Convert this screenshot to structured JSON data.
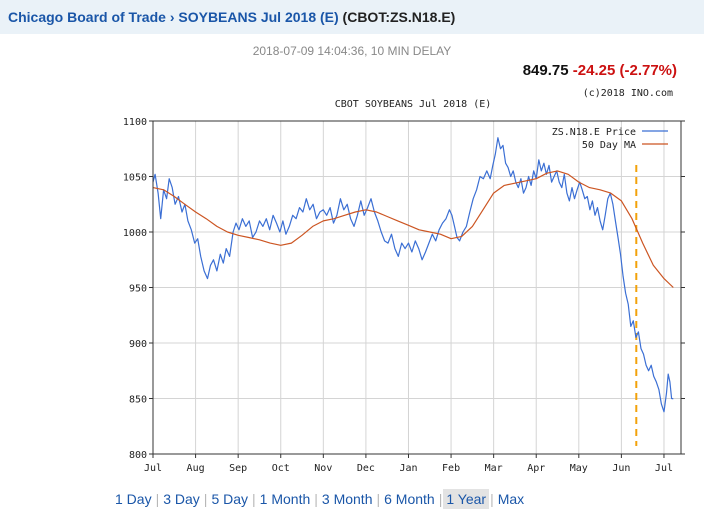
{
  "header": {
    "exchange": "Chicago Board of Trade",
    "separator": "›",
    "contract": "SOYBEANS Jul 2018 (E)",
    "symbol": "(CBOT:ZS.N18.E)"
  },
  "timestamp": "2018-07-09 14:04:36, 10 MIN DELAY",
  "quote": {
    "last": "849.75",
    "change": "-24.25 (-2.77%)"
  },
  "colors": {
    "price": "#3b6fd4",
    "ma": "#cc5522",
    "marker": "#f2a20a",
    "link": "#1a56a8",
    "change": "#cc1111"
  },
  "ranges": [
    "1 Day",
    "3 Day",
    "5 Day",
    "1 Month",
    "3 Month",
    "6 Month",
    "1 Year",
    "Max"
  ],
  "active_range": "1 Year",
  "chart_data": {
    "type": "line",
    "title": "CBOT SOYBEANS Jul 2018 (E)",
    "copyright": "(c)2018 INO.com",
    "ylim": [
      800,
      1100
    ],
    "yticks": [
      800,
      850,
      900,
      950,
      1000,
      1050,
      1100
    ],
    "xlim": [
      0,
      12.4
    ],
    "xticks": [
      {
        "label": "Jul",
        "x": 0
      },
      {
        "label": "Aug",
        "x": 1
      },
      {
        "label": "Sep",
        "x": 2
      },
      {
        "label": "Oct",
        "x": 3
      },
      {
        "label": "Nov",
        "x": 4
      },
      {
        "label": "Dec",
        "x": 5
      },
      {
        "label": "Jan",
        "x": 6
      },
      {
        "label": "Feb",
        "x": 7
      },
      {
        "label": "Mar",
        "x": 8
      },
      {
        "label": "Apr",
        "x": 9
      },
      {
        "label": "May",
        "x": 10
      },
      {
        "label": "Jun",
        "x": 11
      },
      {
        "label": "Jul",
        "x": 12
      }
    ],
    "grid": true,
    "legend_position": "top-right",
    "marker_x": 11.35,
    "series": [
      {
        "name": "ZS.N18.E Price",
        "points": [
          [
            0.0,
            1045
          ],
          [
            0.05,
            1052
          ],
          [
            0.12,
            1035
          ],
          [
            0.18,
            1012
          ],
          [
            0.25,
            1038
          ],
          [
            0.32,
            1030
          ],
          [
            0.38,
            1048
          ],
          [
            0.45,
            1040
          ],
          [
            0.52,
            1025
          ],
          [
            0.6,
            1032
          ],
          [
            0.68,
            1018
          ],
          [
            0.75,
            1025
          ],
          [
            0.82,
            1010
          ],
          [
            0.9,
            1002
          ],
          [
            0.98,
            990
          ],
          [
            1.05,
            994
          ],
          [
            1.12,
            978
          ],
          [
            1.2,
            965
          ],
          [
            1.28,
            958
          ],
          [
            1.35,
            970
          ],
          [
            1.42,
            975
          ],
          [
            1.5,
            965
          ],
          [
            1.58,
            980
          ],
          [
            1.65,
            972
          ],
          [
            1.72,
            985
          ],
          [
            1.8,
            978
          ],
          [
            1.88,
            1000
          ],
          [
            1.95,
            1008
          ],
          [
            2.02,
            1002
          ],
          [
            2.1,
            1012
          ],
          [
            2.18,
            1005
          ],
          [
            2.26,
            1010
          ],
          [
            2.34,
            995
          ],
          [
            2.42,
            1000
          ],
          [
            2.5,
            1010
          ],
          [
            2.58,
            1005
          ],
          [
            2.66,
            1012
          ],
          [
            2.74,
            1002
          ],
          [
            2.82,
            1015
          ],
          [
            2.9,
            1008
          ],
          [
            2.98,
            1000
          ],
          [
            3.05,
            1010
          ],
          [
            3.12,
            998
          ],
          [
            3.2,
            1005
          ],
          [
            3.28,
            1015
          ],
          [
            3.36,
            1012
          ],
          [
            3.44,
            1022
          ],
          [
            3.52,
            1018
          ],
          [
            3.6,
            1030
          ],
          [
            3.68,
            1020
          ],
          [
            3.76,
            1025
          ],
          [
            3.84,
            1012
          ],
          [
            3.92,
            1018
          ],
          [
            4.0,
            1020
          ],
          [
            4.08,
            1015
          ],
          [
            4.16,
            1022
          ],
          [
            4.24,
            1008
          ],
          [
            4.32,
            1015
          ],
          [
            4.4,
            1030
          ],
          [
            4.48,
            1020
          ],
          [
            4.56,
            1025
          ],
          [
            4.64,
            1012
          ],
          [
            4.72,
            1005
          ],
          [
            4.8,
            1015
          ],
          [
            4.88,
            1028
          ],
          [
            4.96,
            1015
          ],
          [
            5.04,
            1022
          ],
          [
            5.12,
            1030
          ],
          [
            5.2,
            1018
          ],
          [
            5.28,
            1010
          ],
          [
            5.36,
            1000
          ],
          [
            5.44,
            992
          ],
          [
            5.52,
            990
          ],
          [
            5.6,
            998
          ],
          [
            5.68,
            985
          ],
          [
            5.76,
            978
          ],
          [
            5.84,
            990
          ],
          [
            5.92,
            985
          ],
          [
            6.0,
            990
          ],
          [
            6.08,
            982
          ],
          [
            6.16,
            992
          ],
          [
            6.24,
            985
          ],
          [
            6.32,
            975
          ],
          [
            6.4,
            982
          ],
          [
            6.48,
            990
          ],
          [
            6.56,
            998
          ],
          [
            6.64,
            992
          ],
          [
            6.72,
            1002
          ],
          [
            6.8,
            1008
          ],
          [
            6.88,
            1012
          ],
          [
            6.96,
            1020
          ],
          [
            7.02,
            1015
          ],
          [
            7.08,
            1005
          ],
          [
            7.14,
            995
          ],
          [
            7.2,
            992
          ],
          [
            7.28,
            1000
          ],
          [
            7.36,
            1005
          ],
          [
            7.44,
            1018
          ],
          [
            7.52,
            1030
          ],
          [
            7.6,
            1038
          ],
          [
            7.68,
            1050
          ],
          [
            7.76,
            1048
          ],
          [
            7.84,
            1055
          ],
          [
            7.92,
            1048
          ],
          [
            7.98,
            1060
          ],
          [
            8.04,
            1070
          ],
          [
            8.1,
            1085
          ],
          [
            8.16,
            1075
          ],
          [
            8.22,
            1078
          ],
          [
            8.28,
            1062
          ],
          [
            8.34,
            1058
          ],
          [
            8.4,
            1050
          ],
          [
            8.46,
            1055
          ],
          [
            8.52,
            1045
          ],
          [
            8.58,
            1040
          ],
          [
            8.64,
            1048
          ],
          [
            8.7,
            1035
          ],
          [
            8.76,
            1040
          ],
          [
            8.82,
            1050
          ],
          [
            8.88,
            1042
          ],
          [
            8.94,
            1055
          ],
          [
            9.0,
            1048
          ],
          [
            9.06,
            1065
          ],
          [
            9.12,
            1055
          ],
          [
            9.18,
            1062
          ],
          [
            9.24,
            1052
          ],
          [
            9.3,
            1060
          ],
          [
            9.36,
            1045
          ],
          [
            9.42,
            1050
          ],
          [
            9.48,
            1055
          ],
          [
            9.54,
            1045
          ],
          [
            9.6,
            1040
          ],
          [
            9.66,
            1052
          ],
          [
            9.72,
            1035
          ],
          [
            9.78,
            1028
          ],
          [
            9.84,
            1040
          ],
          [
            9.9,
            1030
          ],
          [
            9.96,
            1038
          ],
          [
            10.02,
            1045
          ],
          [
            10.08,
            1038
          ],
          [
            10.14,
            1030
          ],
          [
            10.2,
            1032
          ],
          [
            10.26,
            1020
          ],
          [
            10.32,
            1028
          ],
          [
            10.38,
            1015
          ],
          [
            10.44,
            1022
          ],
          [
            10.5,
            1010
          ],
          [
            10.56,
            1002
          ],
          [
            10.62,
            1015
          ],
          [
            10.68,
            1030
          ],
          [
            10.74,
            1035
          ],
          [
            10.8,
            1025
          ],
          [
            10.86,
            1010
          ],
          [
            10.92,
            995
          ],
          [
            10.98,
            980
          ],
          [
            11.04,
            960
          ],
          [
            11.1,
            945
          ],
          [
            11.16,
            935
          ],
          [
            11.22,
            915
          ],
          [
            11.28,
            920
          ],
          [
            11.34,
            905
          ],
          [
            11.4,
            910
          ],
          [
            11.46,
            895
          ],
          [
            11.52,
            890
          ],
          [
            11.58,
            880
          ],
          [
            11.64,
            875
          ],
          [
            11.7,
            880
          ],
          [
            11.76,
            870
          ],
          [
            11.82,
            865
          ],
          [
            11.88,
            858
          ],
          [
            11.94,
            845
          ],
          [
            12.0,
            838
          ],
          [
            12.06,
            855
          ],
          [
            12.1,
            872
          ],
          [
            12.14,
            865
          ],
          [
            12.18,
            850
          ],
          [
            12.22,
            849.75
          ]
        ]
      },
      {
        "name": "50 Day MA",
        "points": [
          [
            0.0,
            1040
          ],
          [
            0.25,
            1038
          ],
          [
            0.5,
            1032
          ],
          [
            0.75,
            1025
          ],
          [
            1.0,
            1018
          ],
          [
            1.25,
            1012
          ],
          [
            1.5,
            1005
          ],
          [
            1.75,
            1000
          ],
          [
            2.0,
            997
          ],
          [
            2.25,
            995
          ],
          [
            2.5,
            993
          ],
          [
            2.75,
            990
          ],
          [
            3.0,
            988
          ],
          [
            3.25,
            990
          ],
          [
            3.5,
            997
          ],
          [
            3.75,
            1005
          ],
          [
            4.0,
            1010
          ],
          [
            4.25,
            1012
          ],
          [
            4.5,
            1015
          ],
          [
            4.75,
            1018
          ],
          [
            5.0,
            1020
          ],
          [
            5.25,
            1018
          ],
          [
            5.5,
            1014
          ],
          [
            5.75,
            1010
          ],
          [
            6.0,
            1006
          ],
          [
            6.25,
            1002
          ],
          [
            6.5,
            1000
          ],
          [
            6.75,
            998
          ],
          [
            7.0,
            994
          ],
          [
            7.25,
            996
          ],
          [
            7.5,
            1005
          ],
          [
            7.75,
            1020
          ],
          [
            8.0,
            1035
          ],
          [
            8.25,
            1042
          ],
          [
            8.5,
            1044
          ],
          [
            8.75,
            1046
          ],
          [
            9.0,
            1048
          ],
          [
            9.25,
            1053
          ],
          [
            9.5,
            1055
          ],
          [
            9.75,
            1052
          ],
          [
            10.0,
            1045
          ],
          [
            10.25,
            1040
          ],
          [
            10.5,
            1038
          ],
          [
            10.75,
            1035
          ],
          [
            11.0,
            1028
          ],
          [
            11.25,
            1012
          ],
          [
            11.5,
            990
          ],
          [
            11.75,
            970
          ],
          [
            12.0,
            958
          ],
          [
            12.22,
            950
          ]
        ]
      }
    ]
  }
}
